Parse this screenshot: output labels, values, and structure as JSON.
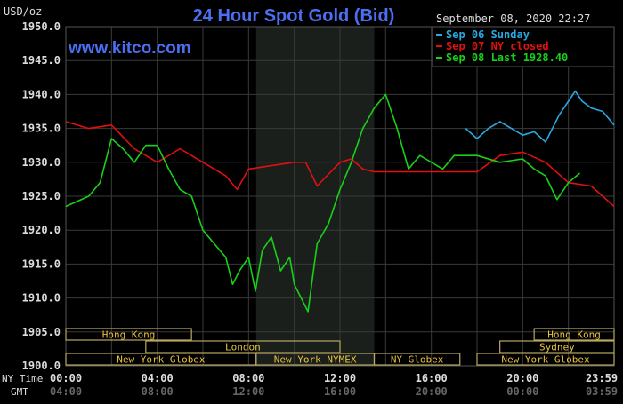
{
  "chart_data": {
    "type": "line",
    "title": "24 Hour Spot Gold (Bid)",
    "watermark": "www.kitco.com",
    "timestamp": "September 08, 2020 22:27",
    "ylabel": "USD/oz",
    "ylim": [
      1900,
      1950
    ],
    "yticks": [
      "1950.0",
      "1945.0",
      "1940.0",
      "1935.0",
      "1930.0",
      "1925.0",
      "1920.0",
      "1915.0",
      "1910.0",
      "1905.0",
      "1900.0"
    ],
    "xlim": [
      0,
      24
    ],
    "x_row_labels": {
      "ny": "NY Time",
      "gmt": "GMT"
    },
    "xticks_ny": [
      "00:00",
      "04:00",
      "08:00",
      "12:00",
      "16:00",
      "20:00",
      "23:59"
    ],
    "xticks_gmt": [
      "04:00",
      "08:00",
      "12:00",
      "16:00",
      "20:00",
      "00:00",
      "03:59"
    ],
    "xtick_hours": [
      0,
      4,
      8,
      12,
      16,
      20,
      24
    ],
    "grid": true,
    "shaded_hours": [
      8.33,
      13.5
    ],
    "legend_position": "top-right",
    "series": [
      {
        "name": "Sep 06 Sunday",
        "color": "#29a8e0",
        "x": [
          17.5,
          18,
          18.5,
          19,
          19.5,
          20,
          20.5,
          21,
          21.3,
          21.6,
          22,
          22.3,
          22.6,
          23,
          23.5,
          24
        ],
        "y": [
          1935,
          1933.5,
          1935,
          1936,
          1935,
          1934,
          1934.5,
          1933,
          1935,
          1937,
          1939,
          1940.5,
          1939,
          1938,
          1937.5,
          1935.5
        ]
      },
      {
        "name": "Sep 07 NY closed",
        "color": "#e01010",
        "x": [
          0,
          1,
          2,
          3,
          4,
          5,
          6,
          7,
          7.5,
          8,
          9,
          10,
          10.5,
          11,
          12,
          12.5,
          13,
          13.5,
          18,
          19,
          20,
          21,
          22,
          23,
          24
        ],
        "y": [
          1936,
          1935,
          1935.5,
          1932,
          1930,
          1932,
          1930,
          1928,
          1926,
          1929,
          1929.5,
          1930,
          1930,
          1926.5,
          1930,
          1930.5,
          1929,
          1928.6,
          1928.6,
          1931,
          1931.5,
          1930,
          1927,
          1926.5,
          1923.5
        ]
      },
      {
        "name": "Sep 08 Last 1928.40",
        "color": "#18d018",
        "x": [
          0,
          1,
          1.5,
          2,
          2.5,
          3,
          3.5,
          4,
          4.5,
          5,
          5.5,
          6,
          6.5,
          7,
          7.3,
          7.6,
          8,
          8.3,
          8.6,
          9,
          9.4,
          9.8,
          10,
          10.3,
          10.6,
          11,
          11.5,
          12,
          12.5,
          13,
          13.5,
          14,
          14.5,
          15,
          15.5,
          16,
          16.5,
          17,
          18,
          19,
          20,
          20.5,
          21,
          21.5,
          22,
          22.5
        ],
        "y": [
          1923.5,
          1925,
          1927,
          1933.5,
          1932,
          1930,
          1932.5,
          1932.5,
          1929,
          1926,
          1925,
          1920,
          1918,
          1916,
          1912,
          1914,
          1916,
          1911,
          1917,
          1919,
          1914,
          1916,
          1912,
          1910,
          1908,
          1918,
          1921,
          1926,
          1930,
          1935,
          1938,
          1940,
          1935,
          1929,
          1931,
          1930,
          1929,
          1931,
          1931,
          1930,
          1930.5,
          1929,
          1928,
          1924.5,
          1927,
          1928.4
        ]
      }
    ],
    "sessions": [
      {
        "name": "Hong Kong",
        "row": 0,
        "start": 0,
        "end": 5.5
      },
      {
        "name": "London",
        "row": 1,
        "start": 3.5,
        "end": 12
      },
      {
        "name": "New York Globex",
        "row": 2,
        "start": 0,
        "end": 8.33
      },
      {
        "name": "New York NYMEX",
        "row": 2,
        "start": 8.33,
        "end": 13.5
      },
      {
        "name": "NY Globex",
        "row": 2,
        "start": 13.5,
        "end": 17.25
      },
      {
        "name": "Hong Kong",
        "row": 0,
        "start": 20.5,
        "end": 24
      },
      {
        "name": "Sydney",
        "row": 1,
        "start": 19,
        "end": 24
      },
      {
        "name": "New York Globex",
        "row": 2,
        "start": 18,
        "end": 24
      }
    ]
  }
}
